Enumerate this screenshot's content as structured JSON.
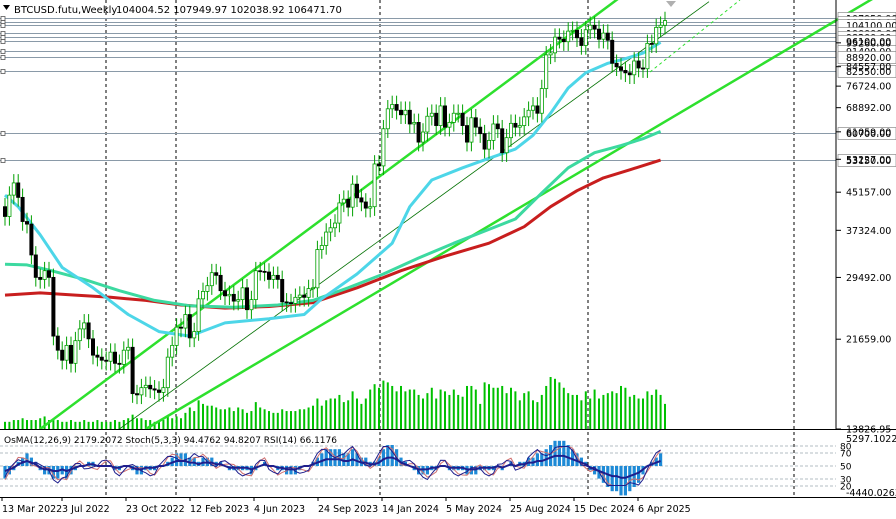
{
  "header": {
    "symbol": "BTCUSD.futu,Weekly",
    "ohlc": "104004.52 107949.97 102038.92 106471.70",
    "indicator_label": "OsMA(12,26,9) 2179.2072   Stoch(5,3,3) 94.4762 94.8207   RSI(14) 66.1176"
  },
  "colors": {
    "background": "#ffffff",
    "candles": "#00a000",
    "ema_fast": "#4dd6e8",
    "ema_mid": "#3cd9a0",
    "ema_slow": "#c81e1e",
    "channel": "#2ee02e",
    "trendline": "#007000",
    "level_lines": "#8a9aa8",
    "volume": "#00c000",
    "osma": "#1e8ad6",
    "stoch_main": "#1e1e8c",
    "stoch_signal": "#d07070",
    "rsi": "#b040b0",
    "osc_levels": "#9aa6b0"
  },
  "chart_data": {
    "type": "candlestick",
    "title": "BTCUSD.futu,Weekly",
    "x_labels": [
      "13 Mar 2022",
      "3 Jul 2022",
      "23 Oct 2022",
      "12 Feb 2023",
      "4 Jun 2023",
      "24 Sep 2023",
      "14 Jan 2024",
      "5 May 2024",
      "25 Aug 2024",
      "15 Dec 2024",
      "6 Apr 2025"
    ],
    "y_scale": "log",
    "y_ticks": [
      95260,
      84557,
      76724,
      68892,
      61059,
      53227,
      45157,
      37324,
      29492,
      21659,
      13826.95
    ],
    "y_range": [
      13826.95,
      118000
    ],
    "level_labels": [
      107950,
      105750,
      104100,
      100000,
      98200,
      96100,
      91400,
      88920,
      82550,
      60700,
      53150
    ],
    "level_labels_text": [
      "107950.00",
      "105750.00",
      "104100.00",
      "100000.00",
      "98200.00",
      "96100.00",
      "91400.00",
      "88920.00",
      "82550.00",
      "60700.00",
      "53150.00"
    ],
    "y_ticks_text": [
      "95260.00",
      "84557.00",
      "76724.00",
      "68892.00",
      "61059.00",
      "53227.00",
      "45157.00",
      "37324.00",
      "29492.00",
      "21659.00",
      "13826.95"
    ],
    "closes": [
      40000,
      44500,
      47300,
      44000,
      39000,
      38500,
      33000,
      29500,
      29200,
      30500,
      29500,
      22000,
      20500,
      19500,
      21000,
      19200,
      21500,
      22800,
      23500,
      21700,
      20000,
      19800,
      19500,
      19400,
      20300,
      19200,
      19100,
      20500,
      20800,
      16500,
      16400,
      17000,
      17200,
      16900,
      16800,
      16600,
      17000,
      19800,
      21000,
      23000,
      22900,
      24500,
      21800,
      22500,
      26500,
      27500,
      28300,
      30200,
      29800,
      27600,
      26900,
      27100,
      26200,
      26400,
      28000,
      25100,
      26400,
      30500,
      30400,
      30300,
      29200,
      29800,
      29200,
      26100,
      26000,
      25900,
      26700,
      27000,
      26700,
      27900,
      28000,
      33900,
      34600,
      37000,
      37800,
      38700,
      42800,
      43600,
      41900,
      47000,
      43900,
      43000,
      41700,
      42000,
      52000,
      51500,
      62000,
      68500,
      70000,
      68000,
      66500,
      68000,
      63500,
      64000,
      58000,
      61000,
      66000,
      67000,
      63000,
      69500,
      62500,
      64000,
      67000,
      67000,
      63000,
      58000,
      65500,
      62500,
      60500,
      56000,
      58500,
      63500,
      62000,
      55000,
      59300,
      63700,
      62500,
      63000,
      65800,
      68000,
      69500,
      67000,
      75800,
      89700,
      90600,
      98000,
      97000,
      95800,
      101000,
      101400,
      97700,
      94000,
      101700,
      104000,
      102000,
      97000,
      100000,
      96500,
      86000,
      84500,
      83000,
      82000,
      81200,
      87000,
      84000,
      83700,
      95000,
      94800,
      102900,
      104000,
      106470
    ],
    "open_first": 42000,
    "ema_fast": {
      "name": "EMA fast",
      "points": [
        [
          0,
          44500
        ],
        [
          3,
          42000
        ],
        [
          8,
          36500
        ],
        [
          13,
          31000
        ],
        [
          20,
          28000
        ],
        [
          28,
          24500
        ],
        [
          35,
          22500
        ],
        [
          42,
          22000
        ],
        [
          50,
          23500
        ],
        [
          60,
          24000
        ],
        [
          68,
          24500
        ],
        [
          72,
          26500
        ],
        [
          80,
          30000
        ],
        [
          88,
          35000
        ],
        [
          92,
          42000
        ],
        [
          97,
          48000
        ],
        [
          104,
          51000
        ],
        [
          110,
          53500
        ],
        [
          116,
          56000
        ],
        [
          120,
          60000
        ],
        [
          124,
          67000
        ],
        [
          128,
          76000
        ],
        [
          132,
          82000
        ],
        [
          137,
          86000
        ],
        [
          141,
          88000
        ],
        [
          145,
          90500
        ],
        [
          149,
          95500
        ]
      ]
    },
    "ema_mid": {
      "name": "EMA mid",
      "points": [
        [
          0,
          31500
        ],
        [
          5,
          31400
        ],
        [
          10,
          30600
        ],
        [
          18,
          29200
        ],
        [
          26,
          27600
        ],
        [
          34,
          26300
        ],
        [
          42,
          25600
        ],
        [
          52,
          25400
        ],
        [
          62,
          25700
        ],
        [
          70,
          26300
        ],
        [
          78,
          28000
        ],
        [
          86,
          30000
        ],
        [
          94,
          32500
        ],
        [
          102,
          35000
        ],
        [
          110,
          37500
        ],
        [
          116,
          39500
        ],
        [
          122,
          45000
        ],
        [
          128,
          51000
        ],
        [
          134,
          55000
        ],
        [
          140,
          57000
        ],
        [
          145,
          59000
        ],
        [
          149,
          61200
        ]
      ]
    },
    "ema_slow": {
      "name": "EMA slow",
      "points": [
        [
          0,
          27000
        ],
        [
          8,
          27300
        ],
        [
          16,
          27000
        ],
        [
          24,
          26700
        ],
        [
          32,
          26300
        ],
        [
          40,
          25700
        ],
        [
          50,
          25300
        ],
        [
          60,
          25500
        ],
        [
          70,
          26000
        ],
        [
          80,
          28000
        ],
        [
          90,
          30500
        ],
        [
          100,
          32800
        ],
        [
          110,
          35000
        ],
        [
          118,
          38000
        ],
        [
          124,
          42000
        ],
        [
          130,
          45500
        ],
        [
          136,
          48500
        ],
        [
          142,
          50500
        ],
        [
          149,
          53000
        ]
      ]
    },
    "channel_upper": [
      [
        8,
        13826.95
      ],
      [
        140,
        120000
      ]
    ],
    "channel_lower": [
      [
        32,
        13826.95
      ],
      [
        198,
        120000
      ]
    ],
    "channel_median": [
      [
        26,
        13826.95
      ],
      [
        160,
        117000
      ]
    ],
    "volume": [
      4,
      4,
      5,
      5,
      6,
      5,
      5,
      5,
      6,
      7,
      5,
      5,
      5,
      4,
      4,
      5,
      4,
      4,
      5,
      4,
      4,
      5,
      4,
      4,
      4,
      5,
      4,
      5,
      6,
      8,
      6,
      6,
      5,
      5,
      4,
      4,
      5,
      7,
      6,
      7,
      6,
      9,
      12,
      10,
      16,
      14,
      13,
      13,
      12,
      11,
      11,
      12,
      10,
      12,
      11,
      9,
      10,
      15,
      12,
      11,
      10,
      9,
      9,
      11,
      10,
      10,
      10,
      11,
      11,
      12,
      13,
      17,
      13,
      16,
      17,
      17,
      19,
      15,
      16,
      21,
      17,
      14,
      17,
      22,
      25,
      23,
      27,
      26,
      24,
      21,
      24,
      21,
      22,
      22,
      19,
      17,
      20,
      23,
      17,
      22,
      21,
      19,
      22,
      19,
      18,
      24,
      24,
      22,
      14,
      26,
      25,
      23,
      23,
      24,
      20,
      23,
      21,
      16,
      20,
      21,
      16,
      15,
      19,
      24,
      29,
      28,
      26,
      23,
      20,
      19,
      19,
      16,
      21,
      17,
      22,
      17,
      19,
      20,
      21,
      20,
      24,
      23,
      18,
      19,
      17,
      17,
      21,
      19,
      22,
      19,
      14
    ],
    "osma": [
      -3,
      -2,
      -1,
      1,
      2,
      3,
      2,
      1,
      -1,
      -2,
      -2,
      -3,
      -3,
      -2,
      -3,
      -2,
      -1,
      0,
      0,
      1,
      1,
      0,
      0,
      0,
      0,
      -1,
      -1,
      0,
      0,
      -1,
      -2,
      -2,
      -1,
      -1,
      -1,
      0,
      0,
      1,
      2,
      3,
      3,
      3,
      2,
      2,
      1,
      2,
      2,
      2,
      1,
      1,
      0,
      -1,
      -1,
      -1,
      -1,
      -1,
      -2,
      -1,
      0,
      1,
      0,
      0,
      -1,
      -1,
      -2,
      -2,
      -2,
      -1,
      0,
      0,
      1,
      2,
      3,
      4,
      4,
      4,
      4,
      3,
      3,
      4,
      3,
      2,
      2,
      1,
      1,
      2,
      4,
      5,
      5,
      4,
      2,
      1,
      0,
      -1,
      -2,
      -2,
      -2,
      -1,
      -1,
      0,
      0,
      -1,
      -1,
      -1,
      -1,
      -2,
      -2,
      -2,
      -1,
      -1,
      -1,
      -1,
      0,
      -1,
      0,
      1,
      0,
      1,
      1,
      2,
      2,
      3,
      3,
      4,
      5,
      6,
      6,
      6,
      5,
      4,
      3,
      2,
      1,
      -1,
      -2,
      -3,
      -4,
      -5,
      -6,
      -6,
      -7,
      -7,
      -6,
      -5,
      -4,
      -2,
      0,
      1,
      2,
      3
    ]
  }
}
